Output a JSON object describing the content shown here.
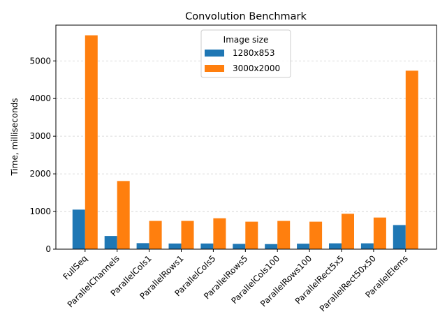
{
  "chart_data": {
    "type": "bar",
    "title": "Convolution Benchmark",
    "xlabel": "",
    "ylabel": "Time, milliseconds",
    "ylim": [
      0,
      5950
    ],
    "yticks": [
      0,
      1000,
      2000,
      3000,
      4000,
      5000
    ],
    "grid": "horizontal dashed",
    "legend": {
      "title": "Image size",
      "placement": "top-center"
    },
    "categories": [
      "FullSeq",
      "ParallelChannels",
      "ParallelCols1",
      "ParallelRows1",
      "ParallelCols5",
      "ParallelRows5",
      "ParallelCols100",
      "ParallelRows100",
      "ParallelRect5x5",
      "ParallelRect50x50",
      "ParallelElems"
    ],
    "series": [
      {
        "name": "1280x853",
        "color": "#1f77b4",
        "values": [
          1050,
          350,
          160,
          150,
          150,
          140,
          135,
          145,
          155,
          155,
          640
        ]
      },
      {
        "name": "3000x2000",
        "color": "#ff7f0e",
        "values": [
          5680,
          1810,
          750,
          750,
          820,
          730,
          750,
          730,
          940,
          840,
          4740
        ]
      }
    ]
  }
}
